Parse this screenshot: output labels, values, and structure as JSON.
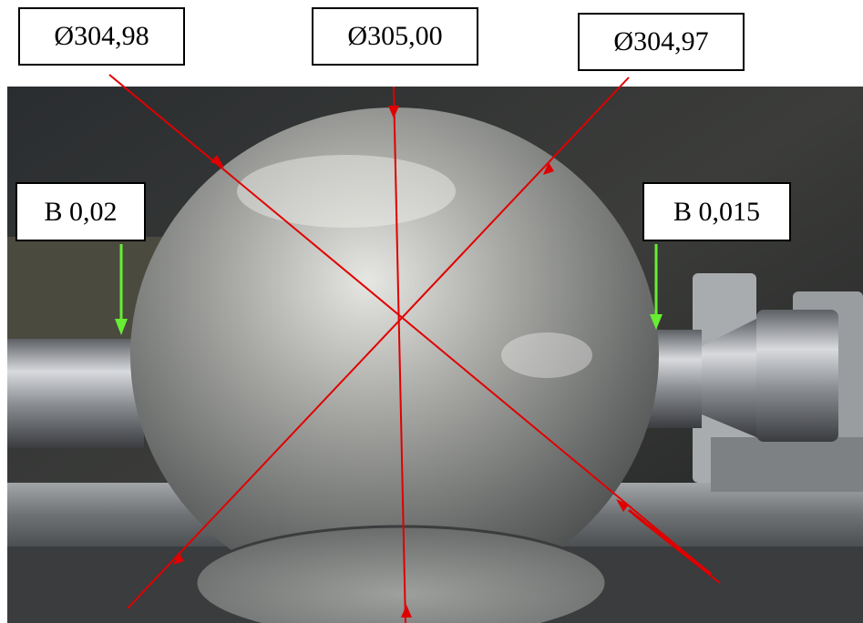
{
  "labels": {
    "diameter_left": "Ø304,98",
    "diameter_center": "Ø305,00",
    "diameter_right": "Ø304,97",
    "runout_left": "B 0,02",
    "runout_right": "B 0,015"
  },
  "colors": {
    "measure_line": "#e00000",
    "runout_arrow": "#66ee33",
    "label_border": "#000000",
    "label_bg": "#ffffff"
  }
}
